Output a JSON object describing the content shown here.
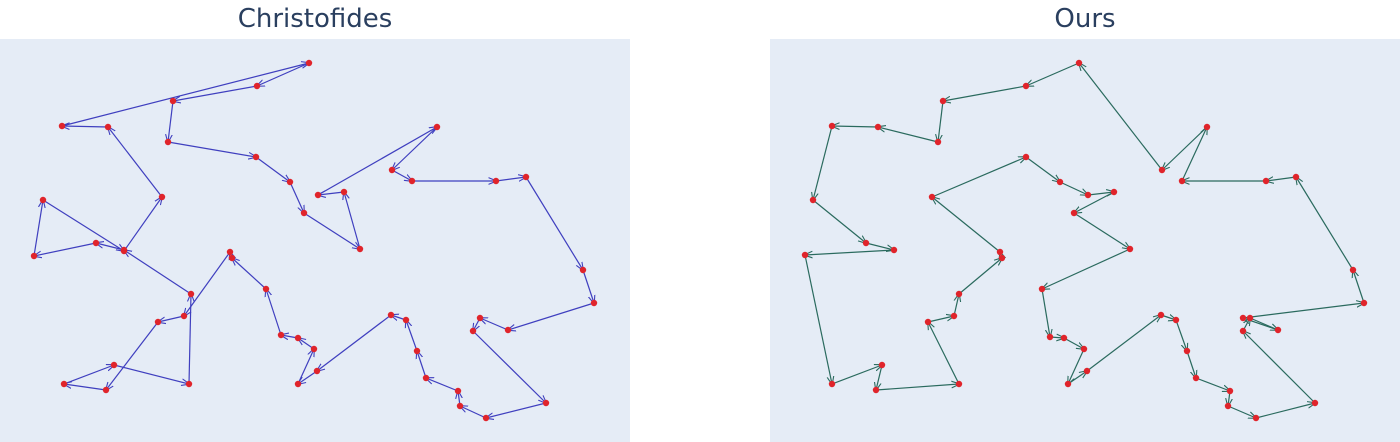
{
  "chart_data": [
    {
      "type": "scatter",
      "title": "Christofides",
      "edge_color": "#3f3fbf",
      "node_color": "#e0242b",
      "background": "#e5ecf6",
      "grid": false,
      "axes_visible": false,
      "xlim": [
        0,
        630
      ],
      "ylim": [
        0,
        403
      ],
      "route": [
        [
          309,
          24
        ],
        [
          257,
          47
        ],
        [
          173,
          62
        ],
        [
          168,
          103
        ],
        [
          256,
          118
        ],
        [
          290,
          143
        ],
        [
          304,
          174
        ],
        [
          360,
          210
        ],
        [
          344,
          153
        ],
        [
          318,
          156
        ],
        [
          437,
          88
        ],
        [
          392,
          131
        ],
        [
          412,
          142
        ],
        [
          496,
          142
        ],
        [
          526,
          138
        ],
        [
          583,
          231
        ],
        [
          594,
          264
        ],
        [
          508,
          291
        ],
        [
          480,
          279
        ],
        [
          473,
          292
        ],
        [
          546,
          364
        ],
        [
          486,
          379
        ],
        [
          460,
          367
        ],
        [
          458,
          352
        ],
        [
          426,
          339
        ],
        [
          417,
          312
        ],
        [
          406,
          281
        ],
        [
          391,
          276
        ],
        [
          317,
          332
        ],
        [
          298,
          345
        ],
        [
          314,
          310
        ],
        [
          298,
          299
        ],
        [
          281,
          296
        ],
        [
          266,
          250
        ],
        [
          232,
          219
        ],
        [
          230,
          213
        ],
        [
          184,
          277
        ],
        [
          158,
          283
        ],
        [
          106,
          351
        ],
        [
          64,
          345
        ],
        [
          114,
          326
        ],
        [
          189,
          345
        ],
        [
          191,
          255
        ],
        [
          124,
          211
        ],
        [
          96,
          204
        ],
        [
          34,
          217
        ],
        [
          43,
          161
        ],
        [
          124,
          212
        ],
        [
          162,
          158
        ],
        [
          108,
          88
        ],
        [
          62,
          87
        ],
        [
          309,
          24
        ]
      ]
    },
    {
      "type": "scatter",
      "title": "Ours",
      "edge_color": "#2a6a5e",
      "node_color": "#e0242b",
      "background": "#e5ecf6",
      "grid": false,
      "axes_visible": false,
      "xlim": [
        0,
        630
      ],
      "ylim": [
        0,
        403
      ],
      "route": [
        [
          309,
          24
        ],
        [
          256,
          47
        ],
        [
          173,
          62
        ],
        [
          168,
          103
        ],
        [
          108,
          88
        ],
        [
          62,
          87
        ],
        [
          43,
          161
        ],
        [
          96,
          204
        ],
        [
          124,
          211
        ],
        [
          35,
          216
        ],
        [
          62,
          345
        ],
        [
          112,
          326
        ],
        [
          106,
          351
        ],
        [
          189,
          345
        ],
        [
          158,
          283
        ],
        [
          184,
          277
        ],
        [
          189,
          255
        ],
        [
          232,
          219
        ],
        [
          230,
          213
        ],
        [
          162,
          158
        ],
        [
          256,
          118
        ],
        [
          290,
          143
        ],
        [
          318,
          156
        ],
        [
          344,
          153
        ],
        [
          304,
          174
        ],
        [
          360,
          210
        ],
        [
          272,
          250
        ],
        [
          280,
          298
        ],
        [
          294,
          299
        ],
        [
          314,
          310
        ],
        [
          298,
          345
        ],
        [
          317,
          332
        ],
        [
          391,
          276
        ],
        [
          406,
          281
        ],
        [
          417,
          312
        ],
        [
          426,
          339
        ],
        [
          460,
          352
        ],
        [
          458,
          367
        ],
        [
          486,
          379
        ],
        [
          545,
          364
        ],
        [
          473,
          292
        ],
        [
          480,
          279
        ],
        [
          508,
          291
        ],
        [
          473,
          279
        ],
        [
          594,
          264
        ],
        [
          583,
          231
        ],
        [
          526,
          138
        ],
        [
          496,
          142
        ],
        [
          412,
          142
        ],
        [
          437,
          88
        ],
        [
          392,
          131
        ],
        [
          309,
          24
        ]
      ]
    }
  ],
  "titles": {
    "left": "Christofides",
    "right": "Ours"
  }
}
